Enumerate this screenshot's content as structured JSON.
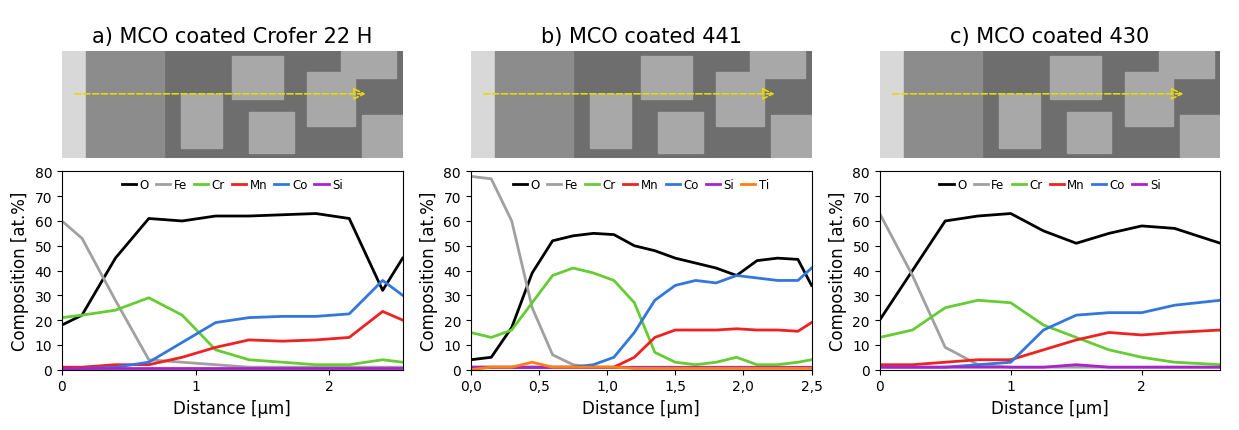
{
  "chart_data": [
    {
      "type": "line",
      "title": "a) MCO coated Crofer 22 H",
      "x_label": "Distance [μm]",
      "y_label": "Composition [at.%]",
      "x": [
        0,
        0.15,
        0.4,
        0.65,
        0.9,
        1.15,
        1.4,
        1.65,
        1.9,
        2.15,
        2.4,
        2.55
      ],
      "xlim": [
        0,
        2.55
      ],
      "xticks": [
        0,
        1,
        2
      ],
      "ylim": [
        0,
        80
      ],
      "yticks": [
        0,
        10,
        20,
        30,
        40,
        50,
        60,
        70,
        80
      ],
      "legend": "upper center",
      "series": [
        {
          "name": "O",
          "color": "#000000",
          "values": [
            18,
            22,
            45,
            61,
            60,
            62,
            62,
            62.5,
            63,
            61,
            32,
            45
          ]
        },
        {
          "name": "Fe",
          "color": "#a0a0a0",
          "values": [
            60,
            53,
            28,
            4,
            3,
            2,
            1,
            1,
            1,
            1,
            1,
            1
          ]
        },
        {
          "name": "Cr",
          "color": "#66cc33",
          "values": [
            21,
            22,
            24,
            29,
            22,
            8,
            4,
            3,
            2,
            2,
            4,
            3
          ]
        },
        {
          "name": "Mn",
          "color": "#ee2222",
          "values": [
            1,
            1,
            2,
            2,
            5,
            9,
            12,
            11.5,
            12,
            13,
            23.5,
            20
          ]
        },
        {
          "name": "Co",
          "color": "#3377dd",
          "values": [
            0,
            0.5,
            1,
            3,
            11,
            19,
            21,
            21.5,
            21.5,
            22.5,
            36,
            30
          ]
        },
        {
          "name": "Si",
          "color": "#aa22cc",
          "values": [
            0.5,
            0.5,
            0.5,
            0.5,
            0.5,
            0.5,
            0.5,
            0.5,
            0.5,
            0.5,
            0.5,
            0.5
          ]
        }
      ]
    },
    {
      "type": "line",
      "title": "b) MCO coated 441",
      "x_label": "Distance [μm]",
      "y_label": "Composition [at.%]",
      "x": [
        0,
        0.15,
        0.3,
        0.45,
        0.6,
        0.75,
        0.9,
        1.05,
        1.2,
        1.35,
        1.5,
        1.65,
        1.8,
        1.95,
        2.1,
        2.25,
        2.4,
        2.5
      ],
      "xlim": [
        0,
        2.5
      ],
      "xticks": [
        {
          "value": 0,
          "label": "0,0"
        },
        {
          "value": 0.5,
          "label": "0,5"
        },
        {
          "value": 1.0,
          "label": "1,0"
        },
        {
          "value": 1.5,
          "label": "1,5"
        },
        {
          "value": 2.0,
          "label": "2,0"
        },
        {
          "value": 2.5,
          "label": "2,5"
        }
      ],
      "ylim": [
        0,
        80
      ],
      "yticks": [
        0,
        10,
        20,
        30,
        40,
        50,
        60,
        70,
        80
      ],
      "legend": "upper center",
      "series": [
        {
          "name": "O",
          "color": "#000000",
          "values": [
            4,
            5,
            17,
            39,
            52,
            54,
            55,
            54.5,
            50,
            48,
            45,
            43,
            41,
            38,
            44,
            45,
            44.5,
            34
          ]
        },
        {
          "name": "Fe",
          "color": "#a0a0a0",
          "values": [
            78,
            77,
            60,
            25,
            6,
            2,
            1,
            1,
            1,
            1,
            1,
            1,
            1,
            1,
            1,
            1,
            1,
            1
          ]
        },
        {
          "name": "Cr",
          "color": "#66cc33",
          "values": [
            15,
            13,
            16,
            27,
            38,
            41,
            39,
            36,
            27,
            7,
            3,
            2,
            3,
            5,
            2,
            2,
            3,
            4
          ]
        },
        {
          "name": "Mn",
          "color": "#ee2222",
          "values": [
            1,
            1,
            1,
            1,
            1,
            1,
            1,
            1,
            5,
            13,
            16,
            16,
            16,
            16.5,
            16,
            16,
            15.5,
            19
          ]
        },
        {
          "name": "Co",
          "color": "#3377dd",
          "values": [
            1,
            1,
            1,
            1,
            1,
            1,
            2,
            5,
            15,
            28,
            34,
            36,
            35,
            38,
            37,
            36,
            36,
            41
          ]
        },
        {
          "name": "Si",
          "color": "#aa22cc",
          "values": [
            1,
            1,
            1,
            1,
            1,
            1,
            1,
            1,
            1,
            1,
            1,
            1,
            1,
            1,
            1,
            1,
            1,
            1
          ]
        },
        {
          "name": "Ti",
          "color": "#ff7f0e",
          "values": [
            0,
            1,
            1,
            3,
            1,
            1,
            1,
            1,
            0.5,
            0.5,
            0.5,
            0.5,
            0.5,
            0.5,
            0.5,
            0.5,
            0.5,
            0.5
          ]
        }
      ]
    },
    {
      "type": "line",
      "title": "c) MCO coated 430",
      "x_label": "Distance [μm]",
      "y_label": "Composition [at.%]",
      "x": [
        0,
        0.25,
        0.5,
        0.75,
        1.0,
        1.25,
        1.5,
        1.75,
        2.0,
        2.25,
        2.6
      ],
      "xlim": [
        0,
        2.6
      ],
      "xticks": [
        0,
        1,
        2
      ],
      "ylim": [
        0,
        80
      ],
      "yticks": [
        0,
        10,
        20,
        30,
        40,
        50,
        60,
        70,
        80
      ],
      "legend": "upper center",
      "series": [
        {
          "name": "O",
          "color": "#000000",
          "values": [
            20,
            40,
            60,
            62,
            63,
            56,
            51,
            55,
            58,
            57,
            51
          ]
        },
        {
          "name": "Fe",
          "color": "#a0a0a0",
          "values": [
            63,
            38,
            9,
            2,
            1,
            1,
            1,
            1,
            1,
            1,
            1
          ]
        },
        {
          "name": "Cr",
          "color": "#66cc33",
          "values": [
            13,
            16,
            25,
            28,
            27,
            18,
            13,
            8,
            5,
            3,
            2
          ]
        },
        {
          "name": "Mn",
          "color": "#ee2222",
          "values": [
            2,
            2,
            3,
            4,
            4,
            8,
            12,
            15,
            14,
            15,
            16
          ]
        },
        {
          "name": "Co",
          "color": "#3377dd",
          "values": [
            1,
            1,
            1,
            2,
            3,
            16,
            22,
            23,
            23,
            26,
            28
          ]
        },
        {
          "name": "Si",
          "color": "#aa22cc",
          "values": [
            1,
            1,
            1,
            1,
            1,
            1,
            2,
            1,
            1,
            1,
            1
          ]
        }
      ]
    }
  ]
}
